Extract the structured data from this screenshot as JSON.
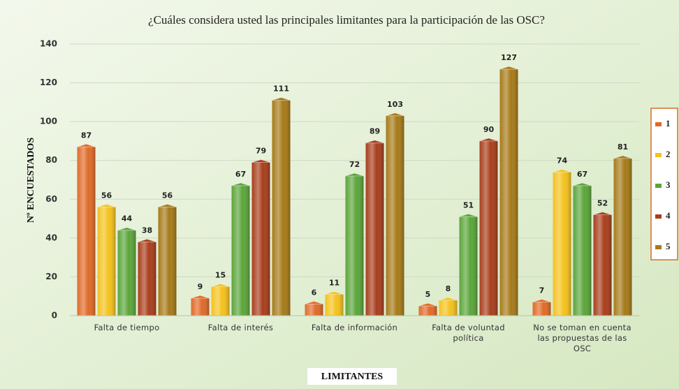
{
  "chart_data": {
    "type": "bar",
    "title": "¿Cuáles considera usted las principales limitantes para la participación de las OSC?",
    "y_label": "Nº ENCUESTADOS",
    "x_label": "LIMITANTES",
    "categories": [
      "Falta de tiempo",
      "Falta de interés",
      "Falta de información",
      "Falta de voluntad política",
      "No se toman en cuenta las propuestas de las OSC"
    ],
    "series": [
      {
        "name": "1",
        "color": "#e06a28",
        "values": [
          87,
          9,
          6,
          5,
          7
        ]
      },
      {
        "name": "2",
        "color": "#f4c21c",
        "values": [
          56,
          15,
          11,
          8,
          74
        ]
      },
      {
        "name": "3",
        "color": "#5ba53a",
        "values": [
          44,
          67,
          72,
          51,
          67
        ]
      },
      {
        "name": "4",
        "color": "#a83e1c",
        "values": [
          38,
          79,
          89,
          90,
          52
        ]
      },
      {
        "name": "5",
        "color": "#a67a18",
        "values": [
          56,
          111,
          103,
          127,
          81
        ]
      }
    ],
    "ylim": [
      0,
      140
    ],
    "yticks": [
      0,
      20,
      40,
      60,
      80,
      100,
      120,
      140
    ],
    "grid": true,
    "legend": "right"
  }
}
